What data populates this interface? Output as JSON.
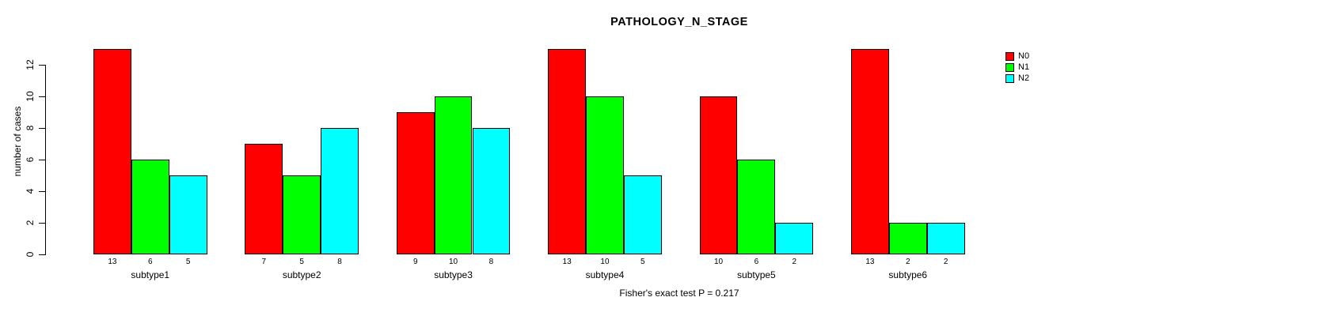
{
  "chart_data": {
    "type": "bar",
    "title": "PATHOLOGY_N_STAGE",
    "xlabel": "",
    "ylabel": "number of cases",
    "categories": [
      "subtype1",
      "subtype2",
      "subtype3",
      "subtype4",
      "subtype5",
      "subtype6"
    ],
    "series": [
      {
        "name": "N0",
        "color": "#ff0000",
        "values": [
          13,
          7,
          9,
          13,
          10,
          13
        ]
      },
      {
        "name": "N1",
        "color": "#00ff00",
        "values": [
          6,
          5,
          10,
          10,
          6,
          2
        ]
      },
      {
        "name": "N2",
        "color": "#00ffff",
        "values": [
          5,
          8,
          8,
          5,
          2,
          2
        ]
      }
    ],
    "bar_value_labels": true,
    "ylim": [
      0,
      13
    ],
    "yticks": [
      0,
      2,
      4,
      6,
      8,
      10,
      12
    ],
    "grid": false,
    "legend_position": "top-right",
    "annotation": "Fisher's exact test P = 0.217"
  }
}
